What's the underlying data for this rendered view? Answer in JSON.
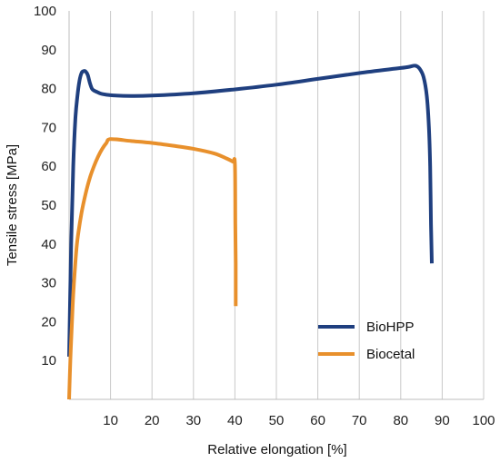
{
  "chart_data": {
    "type": "line",
    "xlabel": "Relative elongation [%]",
    "ylabel": "Tensile stress [MPa]",
    "xlim": [
      0,
      100
    ],
    "ylim": [
      0,
      100
    ],
    "x_ticks": [
      10,
      20,
      30,
      40,
      50,
      60,
      70,
      80,
      90,
      100
    ],
    "y_ticks": [
      10,
      20,
      30,
      40,
      50,
      60,
      70,
      80,
      90,
      100
    ],
    "grid": "vertical",
    "legend_position": "bottom-right",
    "series": [
      {
        "name": "BioHPP",
        "color": "#1f3f7f",
        "x": [
          0,
          0.5,
          1,
          1.5,
          2,
          2.5,
          3,
          3.5,
          4,
          4.5,
          5,
          5.5,
          6,
          7,
          8,
          10,
          15,
          20,
          30,
          40,
          50,
          60,
          70,
          80,
          82,
          83.5,
          84.5,
          85.5,
          86.3,
          86.8,
          87.1,
          87.3,
          87.5
        ],
        "y": [
          11,
          40,
          60,
          72,
          78,
          82,
          84,
          84.5,
          84.4,
          83.5,
          81.5,
          80,
          79.5,
          79,
          78.6,
          78.3,
          78.1,
          78.2,
          78.8,
          79.8,
          81,
          82.5,
          84,
          85.3,
          85.6,
          85.9,
          85.2,
          83,
          78,
          70,
          60,
          45,
          35
        ]
      },
      {
        "name": "Biocetal",
        "color": "#e8902c",
        "x": [
          0,
          0.3,
          0.7,
          1,
          1.5,
          2,
          3,
          4,
          5,
          6,
          7,
          8,
          9,
          10,
          15,
          20,
          25,
          30,
          35,
          38,
          39.5,
          40,
          40.1,
          40.2,
          40.2,
          40.2
        ],
        "y": [
          0,
          10,
          20,
          27,
          35,
          41,
          48,
          53,
          57,
          60,
          62.5,
          64.5,
          66,
          67,
          66.5,
          66,
          65.3,
          64.5,
          63.3,
          62,
          61.2,
          60.6,
          45,
          35,
          28,
          24
        ]
      }
    ]
  }
}
